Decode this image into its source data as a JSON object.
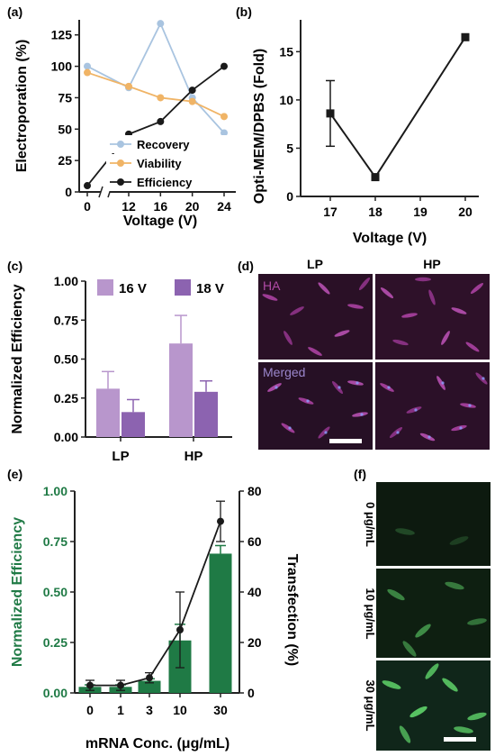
{
  "panels": {
    "a": {
      "label": "(a)"
    },
    "b": {
      "label": "(b)"
    },
    "c": {
      "label": "(c)"
    },
    "d": {
      "label": "(d)",
      "col_lp": "LP",
      "col_hp": "HP",
      "row_ha": "HA",
      "row_merged": "Merged"
    },
    "e": {
      "label": "(e)"
    },
    "f": {
      "label": "(f)",
      "rows": [
        "0 μg/mL",
        "10 μg/mL",
        "30 μg/mL"
      ]
    }
  },
  "colors": {
    "recovery": "#a9c4e0",
    "viability": "#f0b466",
    "efficiency": "#1a1a1a",
    "bar16": "#b896cc",
    "bar18": "#8c63b0",
    "green": "#1f7a45",
    "ha_bg": "#2a1026",
    "merged_bg": "#261025",
    "f_bg": "#0d1a0f"
  },
  "chart_data": [
    {
      "type": "line",
      "panel": "a",
      "x": [
        0,
        12,
        16,
        20,
        24
      ],
      "xticks": [
        "0",
        "12",
        "16",
        "20",
        "24"
      ],
      "xlabel": "Voltage (V)",
      "ylabel": "Electroporation (%)",
      "yticks": [
        "0",
        "25",
        "50",
        "75",
        "100",
        "125"
      ],
      "ylim": [
        0,
        137
      ],
      "axis_break": "between 0 and 12",
      "legend_position": "lower-right",
      "series": [
        {
          "name": "Recovery",
          "values": [
            100,
            83,
            134,
            75,
            47
          ]
        },
        {
          "name": "Viability",
          "values": [
            95,
            84,
            75,
            72,
            60
          ]
        },
        {
          "name": "Efficiency",
          "values": [
            5,
            46,
            56,
            81,
            100
          ]
        }
      ]
    },
    {
      "type": "line",
      "panel": "b",
      "x": [
        17,
        18,
        20
      ],
      "xticks": [
        "17",
        "18",
        "19",
        "20"
      ],
      "xlim": [
        16.6,
        20.3
      ],
      "values": [
        8.6,
        2.0,
        16.5
      ],
      "error": [
        3.4,
        0,
        0
      ],
      "xlabel": "Voltage (V)",
      "ylabel": "Opti-MEM/DPBS (Fold)",
      "yticks": [
        "0",
        "5",
        "10",
        "15"
      ],
      "ylim": [
        0,
        18.3
      ]
    },
    {
      "type": "bar",
      "panel": "c",
      "categories": [
        "LP",
        "HP"
      ],
      "series": [
        {
          "name": "16 V",
          "values": [
            0.31,
            0.6
          ],
          "error": [
            0.11,
            0.18
          ]
        },
        {
          "name": "18 V",
          "values": [
            0.16,
            0.29
          ],
          "error": [
            0.08,
            0.07
          ]
        }
      ],
      "ylabel": "Normalized Efficiency",
      "yticks": [
        "0.00",
        "0.25",
        "0.50",
        "0.75",
        "1.00"
      ],
      "ylim": [
        0,
        1.0
      ],
      "legend_position": "top"
    },
    {
      "type": "bar",
      "panel": "e",
      "categories": [
        "0",
        "1",
        "3",
        "10",
        "30"
      ],
      "bars": {
        "values": [
          0.03,
          0.03,
          0.06,
          0.26,
          0.69
        ],
        "error": [
          0.01,
          0.01,
          0.01,
          0.08,
          0.04
        ]
      },
      "line": {
        "values": [
          3,
          3,
          6,
          25,
          68
        ],
        "error": [
          2,
          2,
          2,
          15,
          8
        ]
      },
      "xlabel": "mRNA Conc. (μg/mL)",
      "ylabel": "Normalized Efficiency",
      "y2label": "Transfection (%)",
      "yticks": [
        "0.00",
        "0.25",
        "0.50",
        "0.75",
        "1.00"
      ],
      "y2ticks": [
        "0",
        "20",
        "40",
        "60",
        "80"
      ],
      "ylim": [
        0,
        1.0
      ],
      "y2lim": [
        0,
        80
      ]
    }
  ]
}
